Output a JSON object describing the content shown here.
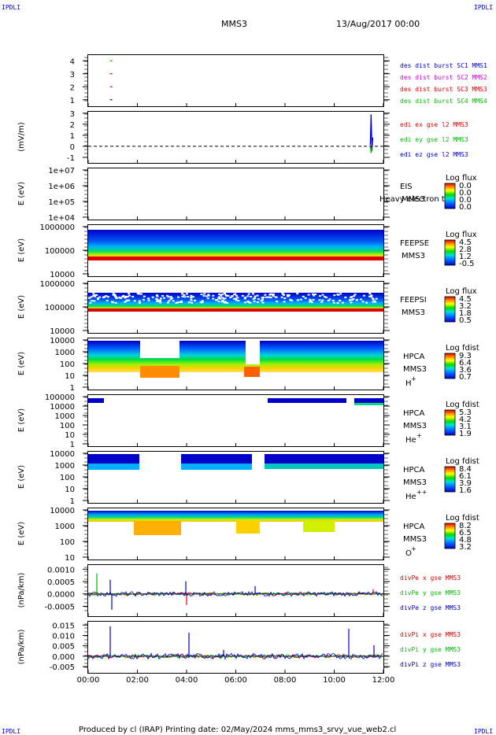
{
  "corner_tag": "IPDLI",
  "header": {
    "spacecraft": "MMS3",
    "date": "13/Aug/2017 00:00"
  },
  "footer": {
    "text": "Produced by cl (IRAP)   Printing date: 02/May/2024   mms_mms3_srvy_vue_web2.cl"
  },
  "colors": {
    "blue": "#0000cc",
    "red": "#dd0000",
    "green": "#00bb00",
    "magenta": "#cc00cc"
  },
  "chart_data": [
    {
      "type": "scatter",
      "panel": "burst",
      "yticks": [
        "4",
        "3",
        "2",
        "1"
      ],
      "ylim": [
        0.5,
        4.5
      ],
      "legend": [
        {
          "label": "des dist burst SC1 MMS1",
          "color": "#0000cc"
        },
        {
          "label": "des dist burst SC2 MMS2",
          "color": "#cc00cc"
        },
        {
          "label": "des dist burst SC3 MMS3",
          "color": "#dd0000"
        },
        {
          "label": "des dist burst SC4 MMS4",
          "color": "#00bb00"
        }
      ],
      "points": [
        {
          "x": "00:56",
          "y": 4,
          "color": "#00bb00"
        },
        {
          "x": "00:56",
          "y": 3,
          "color": "#dd0000"
        },
        {
          "x": "00:56",
          "y": 2,
          "color": "#cc00cc"
        },
        {
          "x": "00:56",
          "y": 1,
          "color": "#0000cc"
        }
      ]
    },
    {
      "type": "line",
      "panel": "edi",
      "ylabel": "(mV/m)",
      "yticks": [
        "3",
        "2",
        "1",
        "0",
        "-1"
      ],
      "ylim": [
        -1.5,
        3.2
      ],
      "legend": [
        {
          "label": "edi ex gse l2 MMS3",
          "color": "#dd0000"
        },
        {
          "label": "edi ey gse l2 MMS3",
          "color": "#00bb00"
        },
        {
          "label": "edi ez gse l2 MMS3",
          "color": "#0000cc"
        }
      ],
      "series": [
        {
          "color": "#0000cc",
          "points": [
            [
              "11:28",
              0.1
            ],
            [
              "11:30",
              2.9
            ],
            [
              "11:32",
              -0.4
            ],
            [
              "11:34",
              0.8
            ]
          ]
        },
        {
          "color": "#00bb00",
          "points": [
            [
              "11:28",
              0.0
            ],
            [
              "11:30",
              -0.6
            ],
            [
              "11:32",
              -0.1
            ]
          ]
        },
        {
          "color": "#dd0000",
          "points": [
            [
              "11:29",
              0.0
            ],
            [
              "11:31",
              -0.2
            ]
          ]
        }
      ]
    },
    {
      "type": "heatmap",
      "panel": "eis",
      "ylabel": "E (eV)",
      "yticks": [
        "1e+07",
        "1e+06",
        "1e+05",
        "1e+04"
      ],
      "instrument": "EIS",
      "sc": "MMS3",
      "overlay": "Heavy electron to",
      "colorbar": {
        "title": "Log flux",
        "ticks": [
          "0.0",
          "0.0",
          "0.0",
          "0.0"
        ]
      }
    },
    {
      "type": "heatmap",
      "panel": "feepse",
      "ylabel": "E (eV)",
      "yticks": [
        "1000000",
        "100000",
        "10000"
      ],
      "instrument": "FEEPSE",
      "sc": "MMS3",
      "colorbar": {
        "title": "Log flux",
        "ticks": [
          "4.5",
          "2.8",
          "1.2",
          "-0.5"
        ]
      }
    },
    {
      "type": "heatmap",
      "panel": "feepsi",
      "ylabel": "E (eV)",
      "yticks": [
        "1000000",
        "100000",
        "10000"
      ],
      "instrument": "FEEPSI",
      "sc": "MMS3",
      "colorbar": {
        "title": "Log flux",
        "ticks": [
          "4.5",
          "3.2",
          "1.8",
          "0.5"
        ]
      }
    },
    {
      "type": "heatmap",
      "panel": "hpca_h",
      "ylabel": "E (eV)",
      "yticks": [
        "10000",
        "1000",
        "100",
        "10",
        "1"
      ],
      "instrument": "HPCA",
      "sc": "MMS3",
      "species": "H",
      "charge": "+",
      "colorbar": {
        "title": "Log fdist",
        "ticks": [
          "9.3",
          "6.4",
          "3.6",
          "0.7"
        ]
      }
    },
    {
      "type": "heatmap",
      "panel": "hpca_he",
      "ylabel": "E (eV)",
      "yticks": [
        "100000",
        "10000",
        "1000",
        "100",
        "10",
        "1"
      ],
      "instrument": "HPCA",
      "sc": "MMS3",
      "species": "He",
      "charge": "+",
      "colorbar": {
        "title": "Log fdist",
        "ticks": [
          "5.3",
          "4.2",
          "3.1",
          "1.9"
        ]
      }
    },
    {
      "type": "heatmap",
      "panel": "hpca_he2",
      "ylabel": "E (eV)",
      "yticks": [
        "10000",
        "1000",
        "100",
        "10",
        "1"
      ],
      "instrument": "HPCA",
      "sc": "MMS3",
      "species": "He",
      "charge": "++",
      "colorbar": {
        "title": "Log fdist",
        "ticks": [
          "8.4",
          "6.1",
          "3.9",
          "1.6"
        ]
      }
    },
    {
      "type": "heatmap",
      "panel": "hpca_o",
      "ylabel": "E (eV)",
      "yticks": [
        "10000",
        "1000",
        "100",
        "10"
      ],
      "instrument": "HPCA",
      "sc": "MMS3",
      "species": "O",
      "charge": "+",
      "colorbar": {
        "title": "Log fdist",
        "ticks": [
          "8.2",
          "6.5",
          "4.8",
          "3.2"
        ]
      }
    },
    {
      "type": "line",
      "panel": "divpe",
      "ylabel": "(nPa/km)",
      "yticks": [
        "0.0010",
        "0.0005",
        "0.0000",
        "-0.0005"
      ],
      "ylim": [
        -0.0009,
        0.0012
      ],
      "legend": [
        {
          "label": "divPe x gse MMS3",
          "color": "#dd0000"
        },
        {
          "label": "divPe y gse MMS3",
          "color": "#00bb00"
        },
        {
          "label": "divPe z gse MMS3",
          "color": "#0000cc"
        }
      ]
    },
    {
      "type": "line",
      "panel": "divpi",
      "ylabel": "(nPa/km)",
      "yticks": [
        "0.015",
        "0.010",
        "0.005",
        "0.000",
        "-0.005"
      ],
      "ylim": [
        -0.008,
        0.017
      ],
      "legend": [
        {
          "label": "divPi x gse MMS3",
          "color": "#dd0000"
        },
        {
          "label": "divPi y gse MMS3",
          "color": "#00bb00"
        },
        {
          "label": "divPi z gse MMS3",
          "color": "#0000cc"
        }
      ]
    }
  ],
  "x_axis": {
    "ticks": [
      "00:00",
      "02:00",
      "04:00",
      "06:00",
      "08:00",
      "10:00",
      "12:00"
    ],
    "range_hours": [
      0,
      12
    ]
  }
}
